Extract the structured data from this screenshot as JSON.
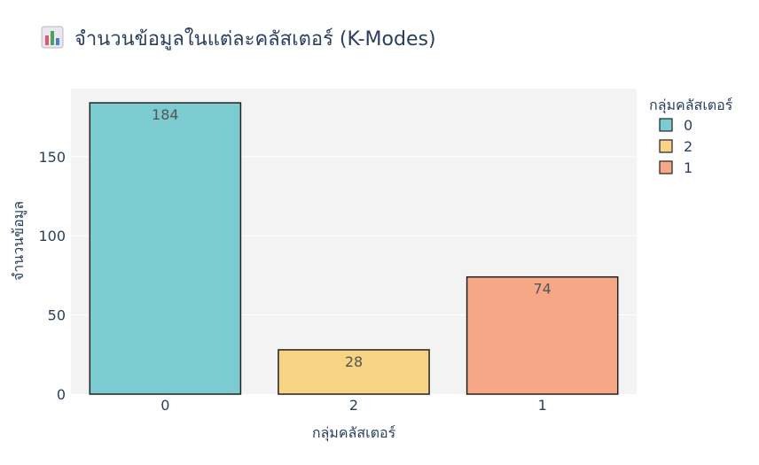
{
  "chart_data": {
    "type": "bar",
    "title_icon": "bar-chart-emoji-icon",
    "title": "จำนวนข้อมูลในแต่ละคลัสเตอร์ (K-Modes)",
    "xlabel": "กลุ่มคลัสเตอร์",
    "ylabel": "จำนวนข้อมูล",
    "categories": [
      "0",
      "2",
      "1"
    ],
    "values": [
      184,
      28,
      74
    ],
    "data_labels": [
      "184",
      "28",
      "74"
    ],
    "colors": [
      "#7ccbd1",
      "#f6d483",
      "#f6a886"
    ],
    "bar_outline_color": "#222222",
    "plot_background": "#f3f3f3",
    "ylim": [
      0,
      193
    ],
    "yticks": [
      0,
      50,
      100,
      150
    ],
    "ytick_labels": [
      "0",
      "50",
      "100",
      "150"
    ],
    "grid": true,
    "legend": {
      "title": "กลุ่มคลัสเตอร์",
      "position": "top-right",
      "entries": [
        "0",
        "2",
        "1"
      ]
    }
  }
}
